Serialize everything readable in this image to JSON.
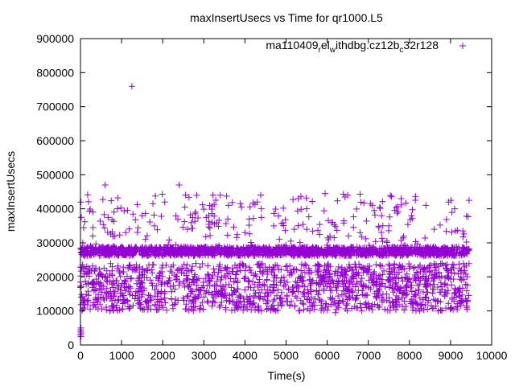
{
  "chart_data": {
    "type": "scatter",
    "title": "maxInsertUsecs vs Time for qr1000.L5",
    "xlabel": "Time(s)",
    "ylabel": "maxInsertUsecs",
    "xlim": [
      0,
      10000
    ],
    "ylim": [
      0,
      900000
    ],
    "xticks": [
      "0",
      "1000",
      "2000",
      "3000",
      "4000",
      "5000",
      "6000",
      "7000",
      "8000",
      "9000",
      "10000"
    ],
    "yticks": [
      "0",
      "100000",
      "200000",
      "300000",
      "400000",
      "500000",
      "600000",
      "700000",
      "800000",
      "900000"
    ],
    "grid": false,
    "legend_position": "top-right",
    "series": [
      {
        "name": "ma110409_rel_withdbg.cz12b_c32r128",
        "legend_parts": [
          "ma110409",
          "r",
          "el",
          "w",
          "ithdbg.cz12b",
          "c",
          "32r128"
        ],
        "color": "#9400d3",
        "marker": "plus",
        "x_range": [
          0,
          9450
        ],
        "dense_band": {
          "y_min": 262000,
          "y_max": 288000
        },
        "main_cluster": {
          "y_min": 100000,
          "y_max": 240000
        },
        "sparse_upper": {
          "y_min": 290000,
          "y_max": 445000
        },
        "points": [
          [
            1250,
            760000
          ],
          [
            600,
            470000
          ],
          [
            2400,
            470000
          ],
          [
            10,
            420000
          ],
          [
            20,
            375000
          ],
          [
            0,
            30000
          ],
          [
            5,
            40000
          ],
          [
            10,
            50000
          ],
          [
            15,
            35000
          ],
          [
            8,
            45000
          ],
          [
            12,
            25000
          ],
          [
            900,
            400000
          ],
          [
            1500,
            380000
          ],
          [
            2050,
            420000
          ],
          [
            2800,
            390000
          ],
          [
            3400,
            440000
          ],
          [
            3600,
            410000
          ],
          [
            4300,
            420000
          ],
          [
            4400,
            400000
          ],
          [
            5300,
            430000
          ],
          [
            5500,
            400000
          ],
          [
            5950,
            445000
          ],
          [
            6500,
            440000
          ],
          [
            7100,
            410000
          ],
          [
            7800,
            430000
          ],
          [
            8050,
            380000
          ],
          [
            8400,
            410000
          ],
          [
            8950,
            420000
          ],
          [
            9100,
            400000
          ],
          [
            9450,
            425000
          ],
          [
            8250,
            100000
          ],
          [
            6200,
            95000
          ],
          [
            4750,
            100000
          ],
          [
            1550,
            105000
          ],
          [
            3850,
            110000
          ],
          [
            7400,
            105000
          ],
          [
            300,
            320000
          ],
          [
            1100,
            330000
          ],
          [
            1800,
            350000
          ],
          [
            2600,
            340000
          ],
          [
            3200,
            360000
          ],
          [
            4000,
            330000
          ],
          [
            4700,
            350000
          ],
          [
            5200,
            340000
          ],
          [
            6100,
            360000
          ],
          [
            6800,
            330000
          ],
          [
            7500,
            350000
          ],
          [
            8600,
            340000
          ],
          [
            9300,
            335000
          ]
        ]
      }
    ]
  }
}
